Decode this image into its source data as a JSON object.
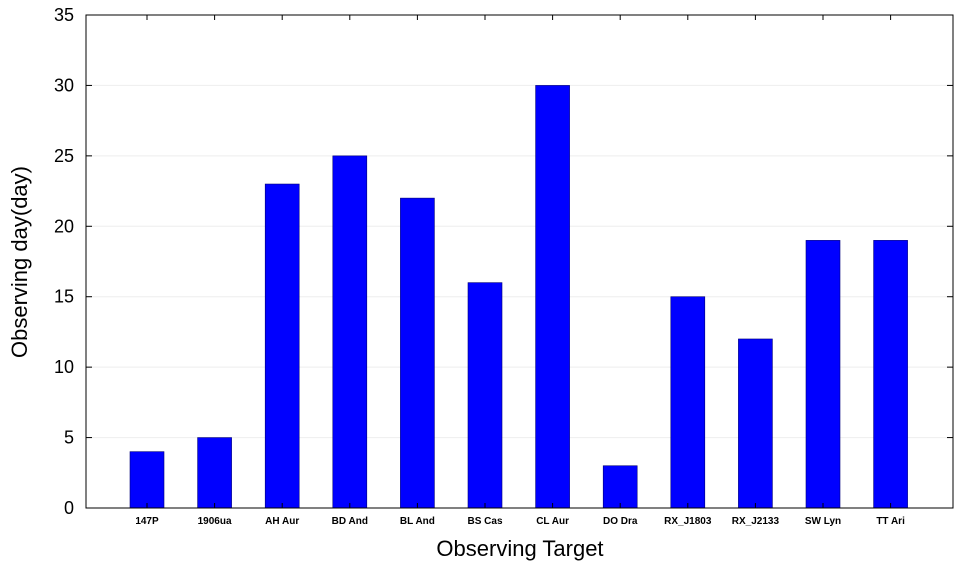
{
  "chart_data": {
    "type": "bar",
    "title": "",
    "xlabel": "Observing Target",
    "ylabel": "Observing day(day)",
    "categories": [
      "147P",
      "1906ua",
      "AH Aur",
      "BD And",
      "BL And",
      "BS Cas",
      "CL Aur",
      "DO Dra",
      "RX_J1803",
      "RX_J2133",
      "SW Lyn",
      "TT Ari"
    ],
    "values": [
      4,
      5,
      23,
      25,
      22,
      16,
      30,
      3,
      15,
      12,
      19,
      19
    ],
    "ylim": [
      0,
      35
    ],
    "yticks": [
      0,
      5,
      10,
      15,
      20,
      25,
      30,
      35
    ],
    "grid": true,
    "bar_color": "#0000ff"
  }
}
